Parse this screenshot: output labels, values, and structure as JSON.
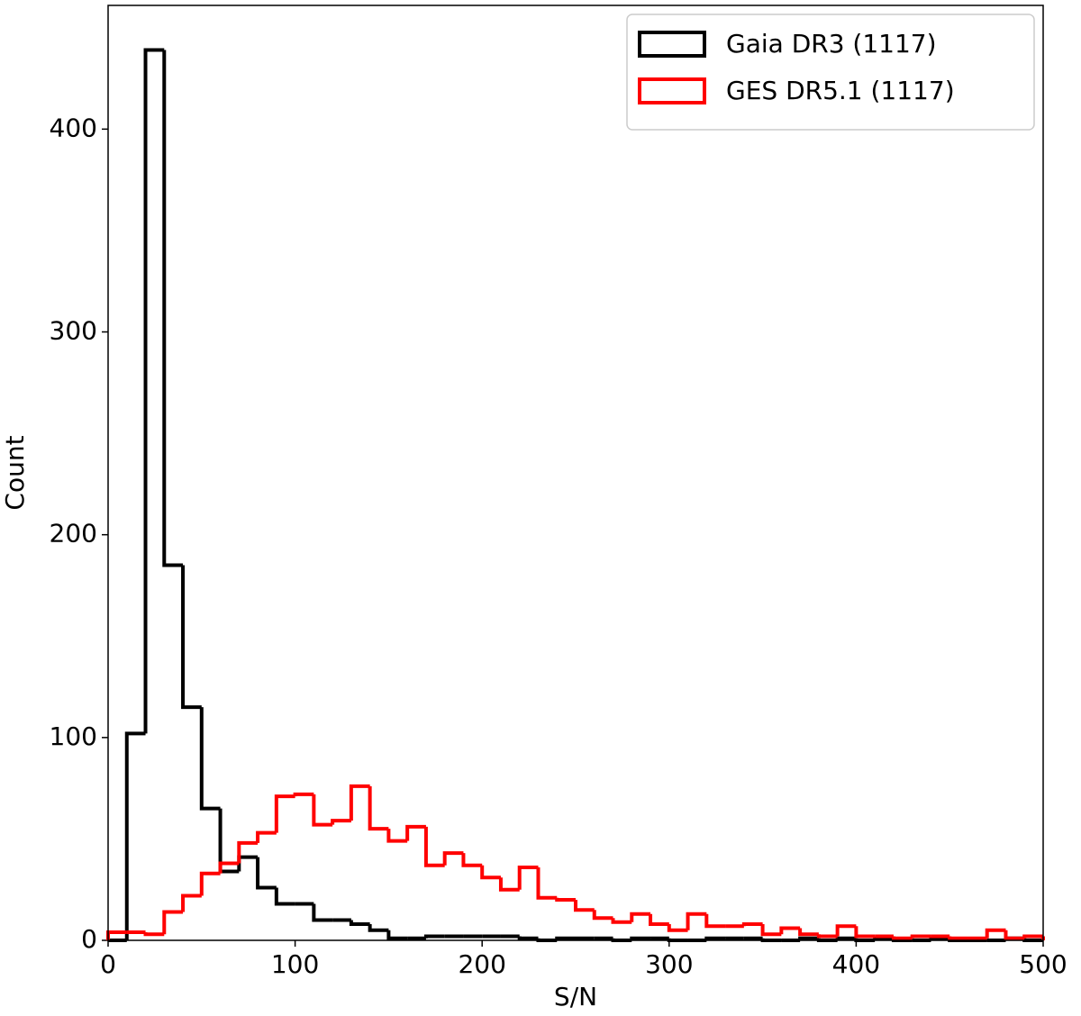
{
  "chart_data": {
    "type": "histogram",
    "xlabel": "S/N",
    "ylabel": "Count",
    "bins": [
      0,
      10,
      20,
      30,
      40,
      50,
      60,
      70,
      80,
      90,
      100,
      110,
      120,
      130,
      140,
      150,
      160,
      170,
      180,
      190,
      200,
      210,
      220,
      230,
      240,
      250,
      260,
      270,
      280,
      290,
      300,
      310,
      320,
      330,
      340,
      350,
      360,
      370,
      380,
      390,
      400,
      410,
      420,
      430,
      440,
      450,
      460,
      470,
      480,
      490,
      500
    ],
    "series": [
      {
        "name": "Gaia DR3 (1117)",
        "color": "#000000",
        "values": [
          0,
          102,
          439,
          185,
          115,
          65,
          34,
          41,
          26,
          18,
          18,
          10,
          10,
          8,
          5,
          1,
          1,
          2,
          2,
          2,
          2,
          2,
          1,
          0,
          1,
          1,
          1,
          0,
          1,
          1,
          0,
          0,
          1,
          1,
          1,
          0,
          0,
          1,
          0,
          1,
          0,
          1,
          0,
          0,
          1,
          0,
          0,
          0,
          1,
          0
        ]
      },
      {
        "name": "GES DR5.1 (1117)",
        "color": "#ff0000",
        "values": [
          4,
          4,
          3,
          14,
          22,
          33,
          38,
          48,
          53,
          71,
          72,
          57,
          59,
          76,
          55,
          49,
          56,
          37,
          43,
          37,
          31,
          25,
          36,
          21,
          20,
          15,
          11,
          9,
          13,
          8,
          5,
          13,
          7,
          7,
          8,
          3,
          6,
          3,
          2,
          7,
          2,
          2,
          1,
          2,
          2,
          1,
          1,
          5,
          1,
          2
        ]
      }
    ],
    "xlim": [
      0,
      500
    ],
    "ylim": [
      0,
      461
    ],
    "xticks": [
      0,
      100,
      200,
      300,
      400,
      500
    ],
    "yticks": [
      0,
      100,
      200,
      300,
      400
    ],
    "legend": "upper right"
  }
}
